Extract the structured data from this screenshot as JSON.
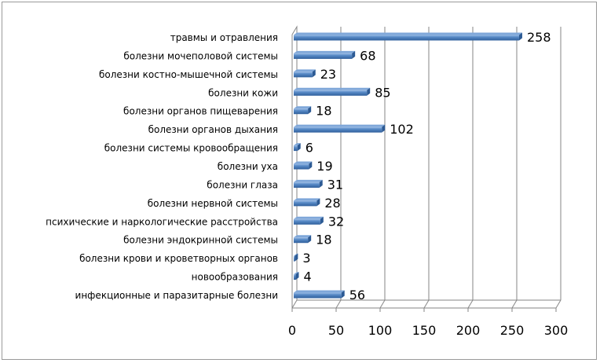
{
  "chart_data": {
    "type": "bar",
    "orientation": "horizontal",
    "style": "3d",
    "categories": [
      "травмы и отравления",
      "болезни мочеполовой системы",
      "болезни костно-мышечной системы",
      "болезни кожи",
      "болезни органов пищеварения",
      "болезни органов дыхания",
      "болезни системы кровообращения",
      "болезни уха",
      "болезни глаза",
      "болезни нервной системы",
      "психические и наркологические расстройства",
      "болезни эндокринной системы",
      "болезни крови и кроветворных органов",
      "новообразования",
      "инфекционные и паразитарные болезни"
    ],
    "values": [
      258,
      68,
      23,
      85,
      18,
      102,
      6,
      19,
      31,
      28,
      32,
      18,
      3,
      4,
      56
    ],
    "xlim": [
      0,
      300
    ],
    "xticks": [
      "0",
      "50",
      "100",
      "150",
      "200",
      "250",
      "300"
    ],
    "grid": "vertical",
    "legend": "none",
    "colors": {
      "bar": "#4a7ebb",
      "bar_light": "#7fa7d9",
      "bar_dark": "#2c5a94",
      "grid": "#868686",
      "axis": "#868686"
    }
  }
}
